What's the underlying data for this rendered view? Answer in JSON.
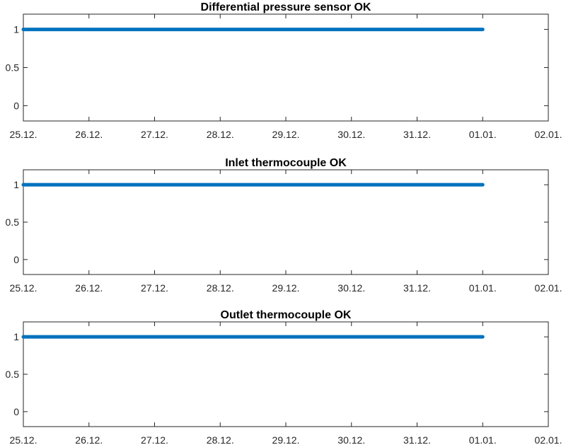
{
  "chart_data": [
    {
      "type": "line",
      "title": "Differential pressure sensor OK",
      "xlabel": "",
      "ylabel": "",
      "x_ticks": [
        "25.12.",
        "26.12.",
        "27.12.",
        "28.12.",
        "29.12.",
        "30.12.",
        "31.12.",
        "01.01.",
        "02.01."
      ],
      "y_ticks": [
        "0",
        "0.5",
        "1"
      ],
      "ylim": [
        -0.2,
        1.2
      ],
      "xlim": [
        "25.12.",
        "02.01."
      ],
      "series": [
        {
          "x": [
            "25.12.",
            "01.01."
          ],
          "values": [
            1,
            1
          ],
          "color": "#0072BD"
        }
      ],
      "grid": false
    },
    {
      "type": "line",
      "title": "Inlet thermocouple OK",
      "xlabel": "",
      "ylabel": "",
      "x_ticks": [
        "25.12.",
        "26.12.",
        "27.12.",
        "28.12.",
        "29.12.",
        "30.12.",
        "31.12.",
        "01.01.",
        "02.01."
      ],
      "y_ticks": [
        "0",
        "0.5",
        "1"
      ],
      "ylim": [
        -0.2,
        1.2
      ],
      "xlim": [
        "25.12.",
        "02.01."
      ],
      "series": [
        {
          "x": [
            "25.12.",
            "01.01."
          ],
          "values": [
            1,
            1
          ],
          "color": "#0072BD"
        }
      ],
      "grid": false
    },
    {
      "type": "line",
      "title": "Outlet thermocouple OK",
      "xlabel": "",
      "ylabel": "",
      "x_ticks": [
        "25.12.",
        "26.12.",
        "27.12.",
        "28.12.",
        "29.12.",
        "30.12.",
        "31.12.",
        "01.01.",
        "02.01."
      ],
      "y_ticks": [
        "0",
        "0.5",
        "1"
      ],
      "ylim": [
        -0.2,
        1.2
      ],
      "xlim": [
        "25.12.",
        "02.01."
      ],
      "series": [
        {
          "x": [
            "25.12.",
            "01.01."
          ],
          "values": [
            1,
            1
          ],
          "color": "#0072BD"
        }
      ],
      "grid": false
    }
  ]
}
